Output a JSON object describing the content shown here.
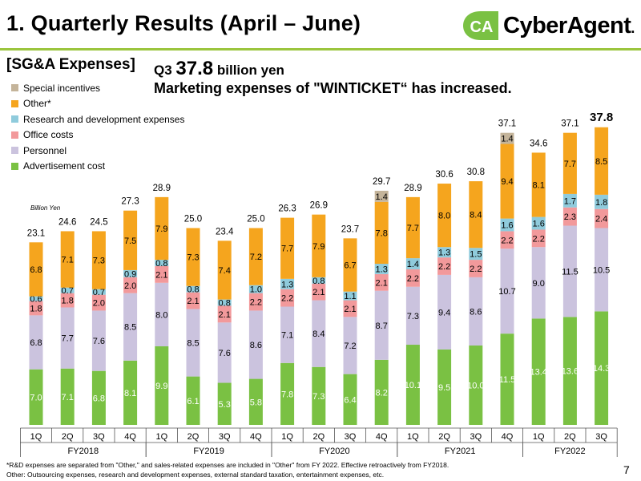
{
  "header": {
    "title": "1.  Quarterly Results (April – June)",
    "logo_text": "CyberAgent",
    "logo_mark": "CA",
    "logo_dot": ".",
    "page_number": "7"
  },
  "section": {
    "label": "[SG&A Expenses]"
  },
  "headline": {
    "q_label": "Q3",
    "value": "37.8",
    "unit": "billion yen",
    "message": "Marketing expenses of \"WINTICKET“ has increased."
  },
  "legend": {
    "items": [
      {
        "label": "Special incentives",
        "color": "#c4b49a"
      },
      {
        "label": "Other*",
        "color": "#f5a51e"
      },
      {
        "label": "Research and development expenses",
        "color": "#8fcbdc"
      },
      {
        "label": "Office costs",
        "color": "#f2999b"
      },
      {
        "label": "Personnel",
        "color": "#cbc3de"
      },
      {
        "label": "Advertisement cost",
        "color": "#7ac143"
      }
    ]
  },
  "footnote": {
    "line1": "*R&D expenses are separated from \"Other,\" and sales-related expenses are included in \"Other\" from FY 2022. Effective retroactively from FY2018.",
    "line2": "Other: Outsourcing expenses, research and development expenses, external standard taxation, entertainment expenses, etc."
  },
  "chart_data": {
    "type": "bar",
    "stacked": true,
    "unit_label": "Billion Yen",
    "categories": [
      "1Q",
      "2Q",
      "3Q",
      "4Q",
      "1Q",
      "2Q",
      "3Q",
      "4Q",
      "1Q",
      "2Q",
      "3Q",
      "4Q",
      "1Q",
      "2Q",
      "3Q",
      "4Q",
      "1Q",
      "2Q",
      "3Q"
    ],
    "fiscal_years": [
      {
        "label": "FY2018",
        "start": 0,
        "end": 3
      },
      {
        "label": "FY2019",
        "start": 4,
        "end": 7
      },
      {
        "label": "FY2020",
        "start": 8,
        "end": 11
      },
      {
        "label": "FY2021",
        "start": 12,
        "end": 15
      },
      {
        "label": "FY2022",
        "start": 16,
        "end": 18
      }
    ],
    "series": [
      {
        "name": "Advertisement cost",
        "color": "#7ac143",
        "values": [
          7.0,
          7.1,
          6.8,
          8.1,
          9.9,
          6.1,
          5.3,
          5.8,
          7.8,
          7.3,
          6.4,
          8.2,
          10.1,
          9.5,
          10.0,
          11.5,
          13.4,
          13.6,
          14.3
        ]
      },
      {
        "name": "Personnel",
        "color": "#cbc3de",
        "values": [
          6.8,
          7.7,
          7.6,
          8.5,
          8.0,
          8.5,
          7.6,
          8.6,
          7.1,
          8.4,
          7.2,
          8.7,
          7.3,
          9.4,
          8.6,
          10.7,
          9.0,
          11.5,
          10.5
        ]
      },
      {
        "name": "Office costs",
        "color": "#f2999b",
        "values": [
          1.8,
          1.8,
          2.0,
          2.0,
          2.1,
          2.1,
          2.1,
          2.2,
          2.2,
          2.1,
          2.1,
          2.1,
          2.2,
          2.2,
          2.2,
          2.2,
          2.2,
          2.3,
          2.4
        ]
      },
      {
        "name": "Research and development expenses",
        "color": "#8fcbdc",
        "values": [
          0.6,
          0.7,
          0.7,
          0.9,
          0.8,
          0.8,
          0.8,
          1.0,
          1.3,
          0.8,
          1.1,
          1.3,
          1.4,
          1.3,
          1.5,
          1.6,
          1.6,
          1.7,
          1.8
        ]
      },
      {
        "name": "Other*",
        "color": "#f5a51e",
        "values": [
          6.8,
          7.1,
          7.3,
          7.5,
          7.9,
          7.3,
          7.4,
          7.2,
          7.7,
          7.9,
          6.7,
          7.8,
          7.7,
          8.0,
          8.4,
          9.4,
          8.1,
          7.7,
          8.5
        ]
      },
      {
        "name": "Special incentives",
        "color": "#c4b49a",
        "values": [
          0,
          0,
          0,
          0,
          0,
          0,
          0,
          0,
          0,
          0,
          0,
          1.4,
          0,
          0,
          0,
          1.4,
          0,
          0,
          0
        ]
      }
    ],
    "totals": [
      "23.1",
      "24.6",
      "24.5",
      "27.3",
      "28.9",
      "25.0",
      "23.4",
      "25.0",
      "26.3",
      "26.9",
      "23.7",
      "29.7",
      "28.9",
      "30.6",
      "30.8",
      "37.1",
      "34.6",
      "37.1",
      "37.8"
    ],
    "highlight_index": 18,
    "ylim": [
      0,
      40
    ]
  }
}
